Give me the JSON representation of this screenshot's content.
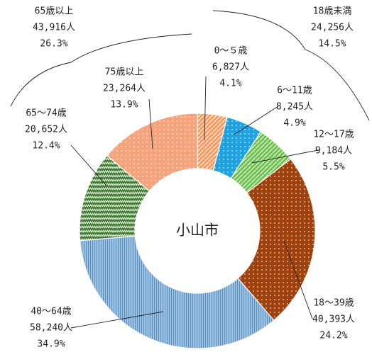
{
  "chart_data": {
    "type": "donut",
    "center_label": "小山市",
    "categories": [
      "0～５歳",
      "6～11歳",
      "12～17歳",
      "18～39歳",
      "40～64歳",
      "65～74歳",
      "75歳以上"
    ],
    "values": [
      6827,
      8245,
      9184,
      40393,
      58240,
      20652,
      23264
    ],
    "value_labels": [
      "6,827人",
      "8,245人",
      "9,184人",
      "40,393人",
      "58,240人",
      "20,652人",
      "23,264人"
    ],
    "percents": [
      4.1,
      4.9,
      5.5,
      24.2,
      34.9,
      12.4,
      13.9
    ],
    "percent_labels": [
      "4.1%",
      "4.9%",
      "5.5%",
      "24.2%",
      "34.9%",
      "12.4%",
      "13.9%"
    ],
    "colors": [
      "#f79a5e",
      "#1fa3e0",
      "#6cc24a",
      "#a0420e",
      "#9cc3e4",
      "#3f7b2e",
      "#f5a37a"
    ],
    "groups": [
      {
        "name": "18歳未満",
        "value": 24256,
        "value_label": "24,256人",
        "percent": 14.5,
        "percent_label": "14.5%"
      },
      {
        "name": "65歳以上",
        "value": 43916,
        "value_label": "43,916人",
        "percent": 26.3,
        "percent_label": "26.3%"
      }
    ]
  }
}
